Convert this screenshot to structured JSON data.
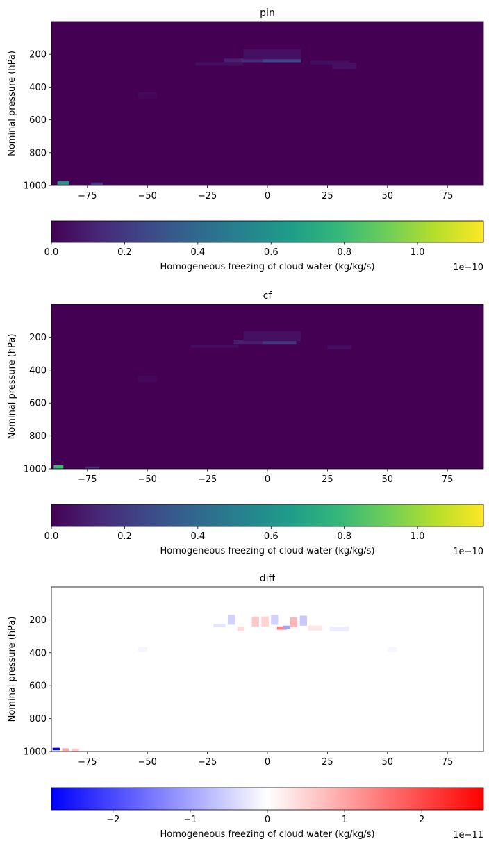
{
  "colormaps": {
    "viridis": [
      "#440154",
      "#482878",
      "#3e4989",
      "#31688e",
      "#26828e",
      "#1f9e89",
      "#35b779",
      "#6ece58",
      "#b5de2b",
      "#fde725"
    ],
    "bwr": [
      "#0000ff",
      "#ffffff",
      "#ff0000"
    ]
  },
  "chart_data": [
    {
      "type": "heatmap",
      "title": "pin",
      "xlabel": "",
      "ylabel": "Nominal pressure (hPa)",
      "xlim": [
        -90,
        90
      ],
      "ylim": [
        1000,
        0
      ],
      "x_ticks": [
        "−75",
        "−50",
        "−25",
        "0",
        "25",
        "50",
        "75"
      ],
      "x_tick_values": [
        -75,
        -50,
        -25,
        0,
        25,
        50,
        75
      ],
      "y_ticks": [
        "200",
        "400",
        "600",
        "800",
        "1000"
      ],
      "y_tick_values": [
        200,
        400,
        600,
        800,
        1000
      ],
      "colormap": "viridis",
      "colorbar": {
        "label": "Homogeneous freezing of cloud water (kg/kg/s)",
        "range": [
          0,
          1.18
        ],
        "ticks": [
          "0.0",
          "0.2",
          "0.4",
          "0.6",
          "0.8",
          "1.0"
        ],
        "tick_values": [
          0,
          0.2,
          0.4,
          0.6,
          0.8,
          1.0
        ],
        "multiplier": "1e−10"
      },
      "features": [
        {
          "lat": -7,
          "p": 237,
          "w": 22,
          "h": 22,
          "value": 0.1
        },
        {
          "lat": 0,
          "p": 237,
          "w": 22,
          "h": 22,
          "value": 0.14
        },
        {
          "lat": 6,
          "p": 237,
          "w": 16,
          "h": 22,
          "value": 0.26
        },
        {
          "lat": 2,
          "p": 200,
          "w": 24,
          "h": 60,
          "value": 0.05
        },
        {
          "lat": -20,
          "p": 258,
          "w": 20,
          "h": 22,
          "value": 0.04
        },
        {
          "lat": 26,
          "p": 250,
          "w": 16,
          "h": 22,
          "value": 0.04
        },
        {
          "lat": 32,
          "p": 270,
          "w": 10,
          "h": 40,
          "value": 0.05
        },
        {
          "lat": -50,
          "p": 450,
          "w": 8,
          "h": 40,
          "value": 0.02
        },
        {
          "lat": -85,
          "p": 985,
          "w": 5,
          "h": 20,
          "value": 0.65
        },
        {
          "lat": -71,
          "p": 990,
          "w": 5,
          "h": 16,
          "value": 0.2
        }
      ]
    },
    {
      "type": "heatmap",
      "title": "cf",
      "xlabel": "",
      "ylabel": "Nominal pressure (hPa)",
      "xlim": [
        -90,
        90
      ],
      "ylim": [
        1000,
        0
      ],
      "x_ticks": [
        "−75",
        "−50",
        "−25",
        "0",
        "25",
        "50",
        "75"
      ],
      "x_tick_values": [
        -75,
        -50,
        -25,
        0,
        25,
        50,
        75
      ],
      "y_ticks": [
        "200",
        "400",
        "600",
        "800",
        "1000"
      ],
      "y_tick_values": [
        200,
        400,
        600,
        800,
        1000
      ],
      "colormap": "viridis",
      "colorbar": {
        "label": "Homogeneous freezing of cloud water (kg/kg/s)",
        "range": [
          0,
          1.18
        ],
        "ticks": [
          "0.0",
          "0.2",
          "0.4",
          "0.6",
          "0.8",
          "1.0"
        ],
        "tick_values": [
          0,
          0.2,
          0.4,
          0.6,
          0.8,
          1.0
        ],
        "multiplier": "1e−10"
      },
      "features": [
        {
          "lat": -2,
          "p": 230,
          "w": 24,
          "h": 22,
          "value": 0.1
        },
        {
          "lat": 5,
          "p": 230,
          "w": 14,
          "h": 22,
          "value": 0.2
        },
        {
          "lat": 2,
          "p": 195,
          "w": 24,
          "h": 60,
          "value": 0.05
        },
        {
          "lat": -22,
          "p": 255,
          "w": 20,
          "h": 22,
          "value": 0.04
        },
        {
          "lat": 30,
          "p": 260,
          "w": 10,
          "h": 30,
          "value": 0.04
        },
        {
          "lat": -50,
          "p": 455,
          "w": 8,
          "h": 40,
          "value": 0.02
        },
        {
          "lat": -87,
          "p": 988,
          "w": 4,
          "h": 20,
          "value": 0.8
        },
        {
          "lat": -73,
          "p": 993,
          "w": 6,
          "h": 14,
          "value": 0.15
        }
      ]
    },
    {
      "type": "heatmap",
      "title": "diff",
      "xlabel": "",
      "ylabel": "Nominal pressure (hPa)",
      "xlim": [
        -90,
        90
      ],
      "ylim": [
        1000,
        0
      ],
      "x_ticks": [
        "−75",
        "−50",
        "−25",
        "0",
        "25",
        "50",
        "75"
      ],
      "x_tick_values": [
        -75,
        -50,
        -25,
        0,
        25,
        50,
        75
      ],
      "y_ticks": [
        "200",
        "400",
        "600",
        "800",
        "1000"
      ],
      "y_tick_values": [
        200,
        400,
        600,
        800,
        1000
      ],
      "colormap": "bwr",
      "colorbar": {
        "label": "Homogeneous freezing of cloud water (kg/kg/s)",
        "range": [
          -2.8,
          2.8
        ],
        "ticks": [
          "−2",
          "−1",
          "0",
          "1",
          "2"
        ],
        "tick_values": [
          -2,
          -1,
          0,
          1,
          2
        ],
        "multiplier": "1e−11"
      },
      "features": [
        {
          "lat": -5,
          "p": 210,
          "w": 3,
          "h": 60,
          "value": 0.6
        },
        {
          "lat": -1,
          "p": 210,
          "w": 3,
          "h": 60,
          "value": 0.5
        },
        {
          "lat": 3,
          "p": 200,
          "w": 3,
          "h": 60,
          "value": -0.5
        },
        {
          "lat": 6,
          "p": 250,
          "w": 4,
          "h": 20,
          "value": 1.4
        },
        {
          "lat": 8,
          "p": 245,
          "w": 3,
          "h": 20,
          "value": -1.0
        },
        {
          "lat": 11,
          "p": 215,
          "w": 3,
          "h": 60,
          "value": 0.8
        },
        {
          "lat": 15,
          "p": 205,
          "w": 3,
          "h": 60,
          "value": -0.6
        },
        {
          "lat": -15,
          "p": 200,
          "w": 3,
          "h": 60,
          "value": -0.5
        },
        {
          "lat": -11,
          "p": 255,
          "w": 3,
          "h": 30,
          "value": 0.4
        },
        {
          "lat": -20,
          "p": 235,
          "w": 5,
          "h": 20,
          "value": -0.3
        },
        {
          "lat": 20,
          "p": 250,
          "w": 6,
          "h": 30,
          "value": 0.3
        },
        {
          "lat": 30,
          "p": 255,
          "w": 8,
          "h": 30,
          "value": -0.2
        },
        {
          "lat": -88,
          "p": 985,
          "w": 3,
          "h": 15,
          "value": -2.8
        },
        {
          "lat": -84,
          "p": 988,
          "w": 3,
          "h": 15,
          "value": 1.0
        },
        {
          "lat": -80,
          "p": 990,
          "w": 3,
          "h": 15,
          "value": 0.6
        },
        {
          "lat": -52,
          "p": 380,
          "w": 4,
          "h": 30,
          "value": -0.1
        },
        {
          "lat": 52,
          "p": 380,
          "w": 4,
          "h": 30,
          "value": -0.1
        }
      ]
    }
  ]
}
